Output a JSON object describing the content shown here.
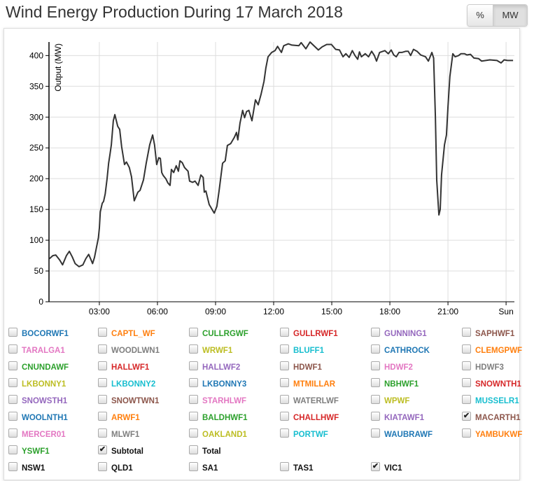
{
  "title": "Wind Energy Production During 17 March 2018",
  "unit_buttons": {
    "percent": "%",
    "mw": "MW",
    "active": "MW"
  },
  "palette": [
    "#1f77b4",
    "#ff7f0e",
    "#2ca02c",
    "#d62728",
    "#9467bd",
    "#8c564b",
    "#e377c2",
    "#7f7f7f",
    "#bcbd22",
    "#17becf"
  ],
  "checkboxes": [
    {
      "label": "BOCORWF1",
      "checked": false
    },
    {
      "label": "CAPTL_WF",
      "checked": false
    },
    {
      "label": "CULLRGWF",
      "checked": false
    },
    {
      "label": "GULLRWF1",
      "checked": false
    },
    {
      "label": "GUNNING1",
      "checked": false
    },
    {
      "label": "SAPHWF1",
      "checked": false
    },
    {
      "label": "TARALGA1",
      "checked": false
    },
    {
      "label": "WOODLWN1",
      "checked": false
    },
    {
      "label": "WRWF1",
      "checked": false
    },
    {
      "label": "BLUFF1",
      "checked": false
    },
    {
      "label": "CATHROCK",
      "checked": false
    },
    {
      "label": "CLEMGPWF",
      "checked": false
    },
    {
      "label": "CNUNDAWF",
      "checked": false
    },
    {
      "label": "HALLWF1",
      "checked": false
    },
    {
      "label": "HALLWF2",
      "checked": false
    },
    {
      "label": "HDWF1",
      "checked": false
    },
    {
      "label": "HDWF2",
      "checked": false
    },
    {
      "label": "HDWF3",
      "checked": false
    },
    {
      "label": "LKBONNY1",
      "checked": false
    },
    {
      "label": "LKBONNY2",
      "checked": false
    },
    {
      "label": "LKBONNY3",
      "checked": false
    },
    {
      "label": "MTMILLAR",
      "checked": false
    },
    {
      "label": "NBHWF1",
      "checked": false
    },
    {
      "label": "SNOWNTH1",
      "checked": false
    },
    {
      "label": "SNOWSTH1",
      "checked": false
    },
    {
      "label": "SNOWTWN1",
      "checked": false
    },
    {
      "label": "STARHLWF",
      "checked": false
    },
    {
      "label": "WATERLWF",
      "checked": false
    },
    {
      "label": "WPWF",
      "checked": false
    },
    {
      "label": "MUSSELR1",
      "checked": false
    },
    {
      "label": "WOOLNTH1",
      "checked": false
    },
    {
      "label": "ARWF1",
      "checked": false
    },
    {
      "label": "BALDHWF1",
      "checked": false
    },
    {
      "label": "CHALLHWF",
      "checked": false
    },
    {
      "label": "KIATAWF1",
      "checked": false
    },
    {
      "label": "MACARTH1",
      "checked": true
    },
    {
      "label": "MERCER01",
      "checked": false
    },
    {
      "label": "MLWF1",
      "checked": false
    },
    {
      "label": "OAKLAND1",
      "checked": false
    },
    {
      "label": "PORTWF",
      "checked": false
    },
    {
      "label": "WAUBRAWF",
      "checked": false
    },
    {
      "label": "YAMBUKWF",
      "checked": false
    },
    {
      "label": "YSWF1",
      "checked": false
    },
    {
      "label": "Subtotal",
      "checked": true,
      "plain": true
    },
    {
      "label": "Total",
      "checked": false,
      "plain": true
    }
  ],
  "regions": [
    {
      "label": "NSW1",
      "checked": false
    },
    {
      "label": "QLD1",
      "checked": false
    },
    {
      "label": "SA1",
      "checked": false
    },
    {
      "label": "TAS1",
      "checked": false
    },
    {
      "label": "VIC1",
      "checked": true
    }
  ],
  "chart_data": {
    "type": "line",
    "title": "Wind Energy Production During 17 March 2018",
    "xlabel": "",
    "ylabel": "Output (MW)",
    "xlim_hours": [
      0.4,
      24.43
    ],
    "ylim": [
      0,
      422
    ],
    "yticks": [
      0,
      50,
      100,
      150,
      200,
      250,
      300,
      350,
      400
    ],
    "xticks": [
      {
        "h": 3,
        "label": "03:00"
      },
      {
        "h": 6,
        "label": "06:00"
      },
      {
        "h": 9,
        "label": "09:00"
      },
      {
        "h": 12,
        "label": "12:00"
      },
      {
        "h": 15,
        "label": "15:00"
      },
      {
        "h": 18,
        "label": "18:00"
      },
      {
        "h": 21,
        "label": "21:00"
      },
      {
        "h": 24,
        "label": "Sun"
      }
    ],
    "grid": true,
    "series": [
      {
        "name": "Subtotal",
        "color": "#333333",
        "points": [
          [
            0.42,
            70
          ],
          [
            0.6,
            75
          ],
          [
            0.75,
            76
          ],
          [
            0.95,
            68
          ],
          [
            1.1,
            60
          ],
          [
            1.3,
            75
          ],
          [
            1.45,
            82
          ],
          [
            1.6,
            73
          ],
          [
            1.75,
            62
          ],
          [
            1.95,
            57
          ],
          [
            2.15,
            60
          ],
          [
            2.3,
            70
          ],
          [
            2.45,
            77
          ],
          [
            2.57,
            68
          ],
          [
            2.65,
            62
          ],
          [
            2.75,
            72
          ],
          [
            2.85,
            88
          ],
          [
            2.95,
            104
          ],
          [
            3.0,
            120
          ],
          [
            3.05,
            146
          ],
          [
            3.15,
            160
          ],
          [
            3.22,
            163
          ],
          [
            3.3,
            175
          ],
          [
            3.4,
            200
          ],
          [
            3.48,
            225
          ],
          [
            3.55,
            240
          ],
          [
            3.62,
            255
          ],
          [
            3.72,
            294
          ],
          [
            3.8,
            304
          ],
          [
            3.95,
            285
          ],
          [
            4.05,
            280
          ],
          [
            4.15,
            252
          ],
          [
            4.3,
            223
          ],
          [
            4.4,
            227
          ],
          [
            4.55,
            218
          ],
          [
            4.66,
            203
          ],
          [
            4.8,
            164
          ],
          [
            4.99,
            178
          ],
          [
            5.1,
            181
          ],
          [
            5.28,
            198
          ],
          [
            5.42,
            225
          ],
          [
            5.6,
            255
          ],
          [
            5.75,
            271
          ],
          [
            5.85,
            255
          ],
          [
            5.96,
            223
          ],
          [
            6.07,
            234
          ],
          [
            6.15,
            233
          ],
          [
            6.22,
            210
          ],
          [
            6.3,
            205
          ],
          [
            6.43,
            200
          ],
          [
            6.54,
            193
          ],
          [
            6.65,
            189
          ],
          [
            6.72,
            215
          ],
          [
            6.84,
            210
          ],
          [
            6.97,
            221
          ],
          [
            7.08,
            212
          ],
          [
            7.16,
            229
          ],
          [
            7.28,
            226
          ],
          [
            7.4,
            218
          ],
          [
            7.58,
            212
          ],
          [
            7.66,
            196
          ],
          [
            7.82,
            194
          ],
          [
            7.94,
            196
          ],
          [
            8.1,
            189
          ],
          [
            8.24,
            206
          ],
          [
            8.36,
            202
          ],
          [
            8.42,
            178
          ],
          [
            8.5,
            180
          ],
          [
            8.67,
            158
          ],
          [
            8.93,
            144
          ],
          [
            9.07,
            155
          ],
          [
            9.18,
            180
          ],
          [
            9.36,
            225
          ],
          [
            9.5,
            229
          ],
          [
            9.61,
            254
          ],
          [
            9.78,
            257
          ],
          [
            9.97,
            267
          ],
          [
            10.08,
            275
          ],
          [
            10.15,
            263
          ],
          [
            10.26,
            290
          ],
          [
            10.4,
            311
          ],
          [
            10.5,
            299
          ],
          [
            10.6,
            309
          ],
          [
            10.72,
            311
          ],
          [
            10.88,
            294
          ],
          [
            11.06,
            328
          ],
          [
            11.2,
            320
          ],
          [
            11.35,
            337
          ],
          [
            11.5,
            358
          ],
          [
            11.6,
            380
          ],
          [
            11.71,
            398
          ],
          [
            11.9,
            405
          ],
          [
            12.07,
            408
          ],
          [
            12.2,
            415
          ],
          [
            12.3,
            410
          ],
          [
            12.4,
            405
          ],
          [
            12.52,
            416
          ],
          [
            12.76,
            419
          ],
          [
            12.94,
            417
          ],
          [
            13.3,
            416
          ],
          [
            13.42,
            421
          ],
          [
            13.66,
            411
          ],
          [
            13.88,
            422
          ],
          [
            14.31,
            409
          ],
          [
            14.5,
            414
          ],
          [
            14.74,
            418
          ],
          [
            14.98,
            418
          ],
          [
            15.2,
            410
          ],
          [
            15.4,
            409
          ],
          [
            15.58,
            398
          ],
          [
            15.73,
            403
          ],
          [
            15.9,
            397
          ],
          [
            16.06,
            408
          ],
          [
            16.2,
            400
          ],
          [
            16.34,
            394
          ],
          [
            16.43,
            406
          ],
          [
            16.53,
            398
          ],
          [
            16.73,
            403
          ],
          [
            16.9,
            398
          ],
          [
            17.06,
            407
          ],
          [
            17.2,
            400
          ],
          [
            17.31,
            391
          ],
          [
            17.47,
            405
          ],
          [
            17.74,
            408
          ],
          [
            17.92,
            403
          ],
          [
            18.07,
            409
          ],
          [
            18.2,
            401
          ],
          [
            18.33,
            398
          ],
          [
            18.47,
            405
          ],
          [
            18.62,
            405
          ],
          [
            18.83,
            407
          ],
          [
            18.95,
            407
          ],
          [
            19.07,
            400
          ],
          [
            19.22,
            410
          ],
          [
            19.4,
            407
          ],
          [
            19.59,
            401
          ],
          [
            19.84,
            398
          ],
          [
            19.99,
            391
          ],
          [
            20.17,
            405
          ],
          [
            20.26,
            396
          ],
          [
            20.35,
            301
          ],
          [
            20.42,
            198
          ],
          [
            20.53,
            141
          ],
          [
            20.6,
            150
          ],
          [
            20.67,
            206
          ],
          [
            20.82,
            255
          ],
          [
            20.92,
            271
          ],
          [
            21.0,
            317
          ],
          [
            21.1,
            366
          ],
          [
            21.25,
            403
          ],
          [
            21.37,
            398
          ],
          [
            21.55,
            400
          ],
          [
            21.67,
            403
          ],
          [
            21.85,
            403
          ],
          [
            21.98,
            401
          ],
          [
            22.16,
            402
          ],
          [
            22.34,
            396
          ],
          [
            22.58,
            395
          ],
          [
            22.74,
            391
          ],
          [
            23.16,
            393
          ],
          [
            23.53,
            392
          ],
          [
            23.74,
            388
          ],
          [
            23.9,
            393
          ],
          [
            24.08,
            392
          ],
          [
            24.36,
            392
          ]
        ]
      }
    ]
  }
}
